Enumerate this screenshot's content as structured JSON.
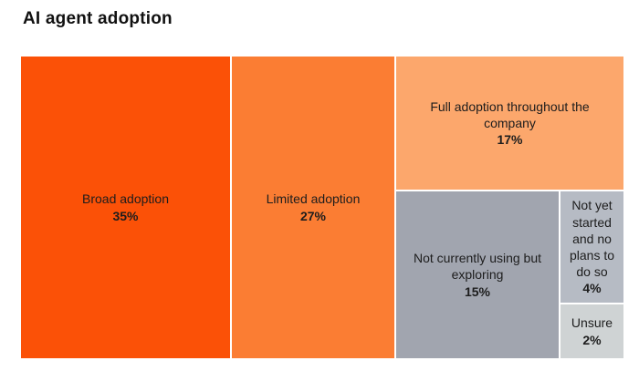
{
  "title": "AI agent adoption",
  "chart_data": {
    "type": "treemap",
    "title": "AI agent adoption",
    "unit": "percent",
    "legend": "none",
    "segments": [
      {
        "label": "Broad adoption",
        "value": 35,
        "pct_label": "35%",
        "color": "#FB5107"
      },
      {
        "label": "Limited adoption",
        "value": 27,
        "pct_label": "27%",
        "color": "#FB7D33"
      },
      {
        "label": "Full adoption throughout the company",
        "value": 17,
        "pct_label": "17%",
        "color": "#FCA76C"
      },
      {
        "label": "Not currently using but exploring",
        "value": 15,
        "pct_label": "15%",
        "color": "#A1A5AF"
      },
      {
        "label": "Not yet started and no plans to do so",
        "value": 4,
        "pct_label": "4%",
        "color": "#B6BBC4"
      },
      {
        "label": "Unsure",
        "value": 2,
        "pct_label": "2%",
        "color": "#CFD3D4"
      }
    ]
  }
}
